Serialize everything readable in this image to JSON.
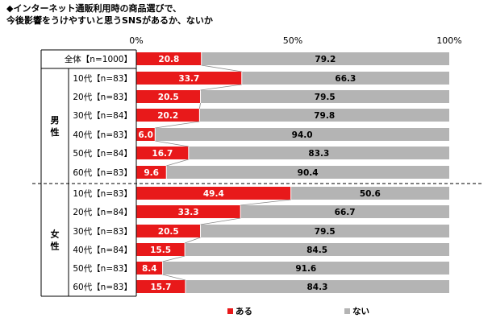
{
  "title_lines": [
    "◆インターネット通販利用時の商品選びで、",
    "今後影響をうけやすいと思うSNSがあるか、ないか"
  ],
  "chart_data": {
    "type": "bar",
    "orientation": "horizontal",
    "stacked": true,
    "percent_stacked": true,
    "x_ticks": [
      "0%",
      "50%",
      "100%"
    ],
    "xlim": [
      0,
      100
    ],
    "groups": [
      {
        "label": "",
        "rows": [
          "全体【n=1000】"
        ]
      },
      {
        "label": "男性",
        "rows": [
          "10代【n=83】",
          "20代【n=83】",
          "30代【n=84】",
          "40代【n=83】",
          "50代【n=84】",
          "60代【n=83】"
        ]
      },
      {
        "label": "女性",
        "rows": [
          "10代【n=83】",
          "20代【n=84】",
          "30代【n=83】",
          "40代【n=84】",
          "50代【n=83】",
          "60代【n=83】"
        ]
      }
    ],
    "categories": [
      "全体【n=1000】",
      "10代【n=83】",
      "20代【n=83】",
      "30代【n=84】",
      "40代【n=83】",
      "50代【n=84】",
      "60代【n=83】",
      "10代【n=83】",
      "20代【n=84】",
      "30代【n=83】",
      "40代【n=84】",
      "50代【n=83】",
      "60代【n=83】"
    ],
    "series": [
      {
        "name": "ある",
        "color": "#e8191a",
        "label_color": "#ffffff",
        "values": [
          20.8,
          33.7,
          20.5,
          20.2,
          6.0,
          16.7,
          9.6,
          49.4,
          33.3,
          20.5,
          15.5,
          8.4,
          15.7
        ]
      },
      {
        "name": "ない",
        "color": "#b4b4b4",
        "label_color": "#000000",
        "values": [
          79.2,
          66.3,
          79.5,
          79.8,
          94.0,
          83.3,
          90.4,
          50.6,
          66.7,
          79.5,
          84.5,
          91.6,
          84.3
        ]
      }
    ],
    "value_labels": [
      [
        "20.8",
        "33.7",
        "20.5",
        "20.2",
        "6.0",
        "16.7",
        "9.6",
        "49.4",
        "33.3",
        "20.5",
        "15.5",
        "8.4",
        "15.7"
      ],
      [
        "79.2",
        "66.3",
        "79.5",
        "79.8",
        "94.0",
        "83.3",
        "90.4",
        "50.6",
        "66.7",
        "79.5",
        "84.5",
        "91.6",
        "84.3"
      ]
    ],
    "series_lines": true,
    "legend_position": "bottom"
  }
}
